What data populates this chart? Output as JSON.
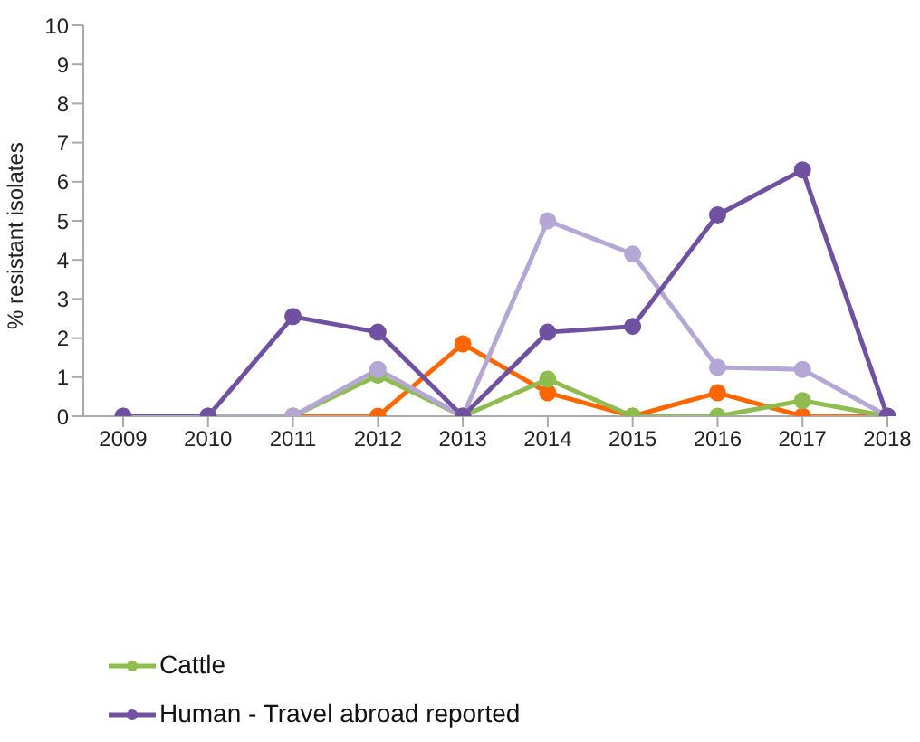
{
  "chart_data": {
    "type": "line",
    "ylabel": "% resistant isolates",
    "categories": [
      "2009",
      "2010",
      "2011",
      "2012",
      "2013",
      "2014",
      "2015",
      "2016",
      "2017",
      "2018"
    ],
    "ylim": [
      0,
      10
    ],
    "yticks": [
      0,
      1,
      2,
      3,
      4,
      5,
      6,
      7,
      8,
      9,
      10
    ],
    "grid": false,
    "legend": "bottom",
    "marker": "circle",
    "line_style": "solid",
    "series": [
      {
        "color": "#ff6600",
        "values": [
          null,
          null,
          0,
          0,
          1.85,
          0.6,
          0,
          0.6,
          0,
          0
        ]
      },
      {
        "name": "Cattle",
        "color": "#8fbc4f",
        "values": [
          0,
          0,
          0,
          1.05,
          0,
          0.95,
          0,
          0,
          0.4,
          0
        ]
      },
      {
        "color": "#b4a7d6",
        "values": [
          0,
          0,
          0,
          1.2,
          0,
          5.0,
          4.15,
          1.25,
          1.2,
          0
        ]
      },
      {
        "name": "Human - Travel abroad reported",
        "color": "#7050a0",
        "values": [
          0,
          0,
          2.55,
          2.15,
          0,
          2.15,
          2.3,
          5.15,
          6.3,
          0
        ]
      }
    ]
  }
}
